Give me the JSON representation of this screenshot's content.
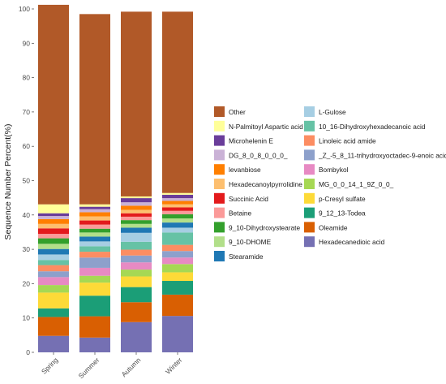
{
  "chart_data": {
    "type": "bar",
    "stacked": true,
    "title": "",
    "xlabel": "",
    "ylabel": "Sequence Number Percent(%)",
    "ylim": [
      0,
      100
    ],
    "yticks": [
      0,
      10,
      20,
      30,
      40,
      50,
      60,
      70,
      80,
      90,
      100
    ],
    "grid": false,
    "legend_position": "right",
    "categories": [
      "Spring",
      "Summer",
      "Autumn",
      "Winter"
    ],
    "series": [
      {
        "name": "Hexadecanedioic acid",
        "color": "#7570B3",
        "values": [
          4.8,
          4.3,
          8.8,
          10.6
        ]
      },
      {
        "name": "Oleamide",
        "color": "#D95F02",
        "values": [
          5.5,
          6.2,
          5.8,
          6.2
        ]
      },
      {
        "name": "9_12_13-Todea",
        "color": "#1B9E77",
        "values": [
          2.5,
          6.0,
          4.4,
          4.0
        ]
      },
      {
        "name": "p-Cresyl sulfate",
        "color": "#FDDA38",
        "values": [
          4.6,
          3.8,
          3.1,
          2.5
        ]
      },
      {
        "name": "MG_0_0_14_1_9Z_0_0_",
        "color": "#A6D854",
        "values": [
          2.2,
          2.0,
          2.0,
          2.4
        ]
      },
      {
        "name": "Bombykol",
        "color": "#E78AC3",
        "values": [
          2.3,
          2.3,
          2.1,
          1.9
        ]
      },
      {
        "name": "_Z_-5_8_11-trihydroxyoctadec-9-enoic acid",
        "color": "#8DA0CB",
        "values": [
          1.7,
          3.0,
          2.0,
          1.9
        ]
      },
      {
        "name": "Linoleic acid amide",
        "color": "#FC8D62",
        "values": [
          1.8,
          1.7,
          1.7,
          1.8
        ]
      },
      {
        "name": "10_16-Dihydroxyhexadecanoic acid",
        "color": "#66C2A5",
        "values": [
          1.5,
          1.6,
          2.3,
          3.6
        ]
      },
      {
        "name": "L-Gulose",
        "color": "#A6CEE3",
        "values": [
          1.6,
          1.4,
          2.6,
          1.4
        ]
      },
      {
        "name": "Stearamide",
        "color": "#1F78B4",
        "values": [
          1.6,
          1.4,
          1.5,
          1.5
        ]
      },
      {
        "name": "9_10-DHOME",
        "color": "#B2DF8A",
        "values": [
          1.5,
          1.2,
          1.1,
          1.2
        ]
      },
      {
        "name": "9_10-Dihydroxystearate",
        "color": "#33A02C",
        "values": [
          1.6,
          1.1,
          1.1,
          1.2
        ]
      },
      {
        "name": "Betaine",
        "color": "#FB9A99",
        "values": [
          1.3,
          1.2,
          1.0,
          1.0
        ]
      },
      {
        "name": "Succinic Acid",
        "color": "#E31A1C",
        "values": [
          1.6,
          1.2,
          1.0,
          1.0
        ]
      },
      {
        "name": "Hexadecanoylpyrrolidine",
        "color": "#FDBF6F",
        "values": [
          1.3,
          1.2,
          1.0,
          0.9
        ]
      },
      {
        "name": "levanbiose",
        "color": "#FF7F00",
        "values": [
          1.4,
          1.2,
          1.2,
          1.0
        ]
      },
      {
        "name": "DG_8_0_8_0_0_0_",
        "color": "#CAB2D6",
        "values": [
          0.9,
          0.9,
          1.0,
          0.8
        ]
      },
      {
        "name": "Microhelenin E",
        "color": "#6A3D9A",
        "values": [
          0.8,
          0.7,
          1.2,
          1.0
        ]
      },
      {
        "name": "N-Palmitoyl Aspartic acid",
        "color": "#FFFF99",
        "values": [
          2.6,
          0.7,
          0.5,
          0.5
        ]
      },
      {
        "name": "Other",
        "color": "#B15928",
        "values": [
          58.1,
          55.4,
          53.8,
          52.8
        ]
      }
    ]
  }
}
